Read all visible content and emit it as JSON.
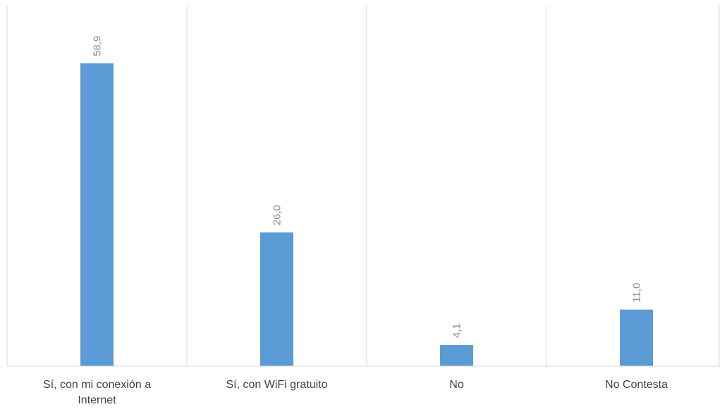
{
  "chart_data": {
    "type": "bar",
    "categories": [
      "Sí, con mi conexión a Internet",
      "Sí, con WiFi gratuito",
      "No",
      "No Contesta"
    ],
    "values": [
      58.9,
      26.0,
      4.1,
      11.0
    ],
    "data_labels": [
      "58,9",
      "26,0",
      "4,1",
      "11,0"
    ],
    "bar_color": "#5b9bd5",
    "grid": "vertical separators between categories",
    "legend": "none",
    "title": "",
    "xlabel": "",
    "ylabel": "",
    "ylim": [
      0,
      60
    ]
  }
}
